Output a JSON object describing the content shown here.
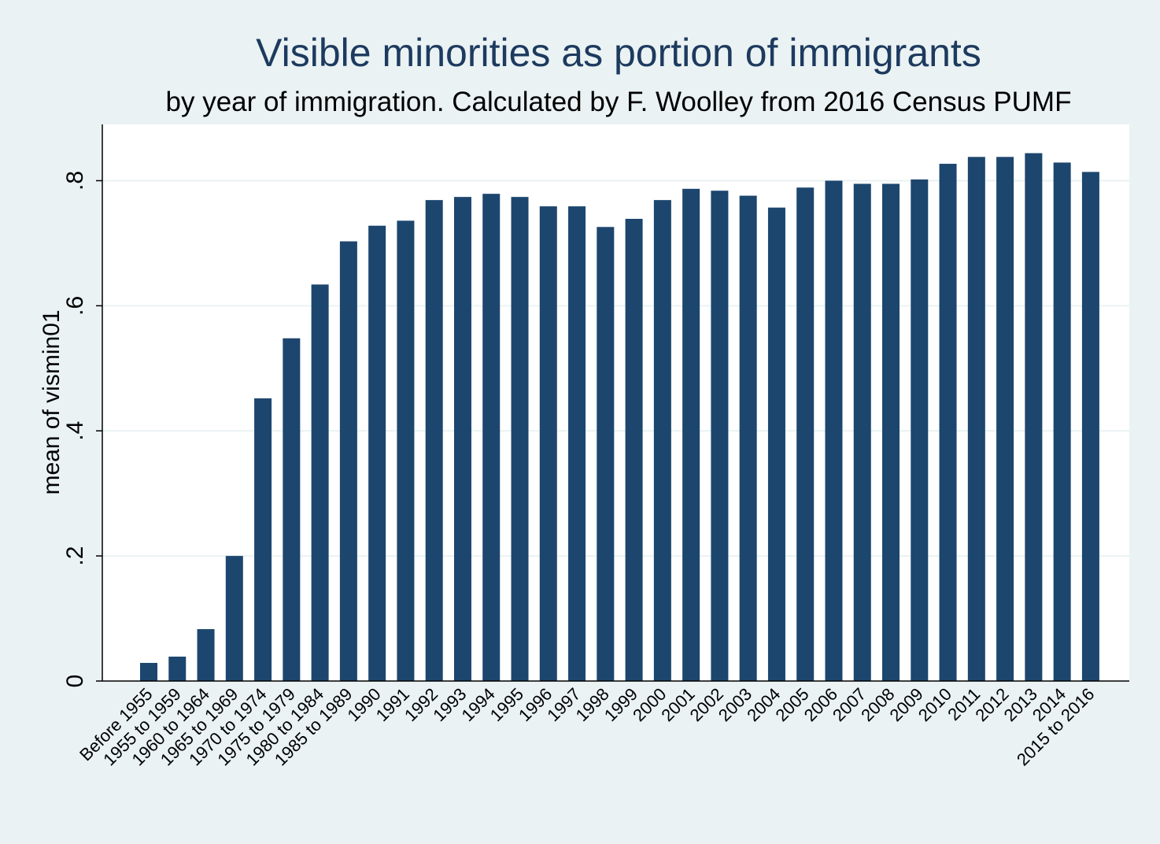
{
  "chart_data": {
    "type": "bar",
    "title": "Visible minorities as portion of immigrants",
    "subtitle": "by year of immigration. Calculated by F. Woolley from 2016 Census PUMF",
    "xlabel": "",
    "ylabel": "mean of vismin01",
    "ylim": [
      0,
      0.89
    ],
    "yticks": [
      {
        "value": 0,
        "label": "0"
      },
      {
        "value": 0.2,
        "label": ".2"
      },
      {
        "value": 0.4,
        "label": ".4"
      },
      {
        "value": 0.6,
        "label": ".6"
      },
      {
        "value": 0.8,
        "label": ".8"
      }
    ],
    "grid": true,
    "legend": "none",
    "categories": [
      "Before 1955",
      "1955 to 1959",
      "1960 to 1964",
      "1965 to 1969",
      "1970 to 1974",
      "1975 to 1979",
      "1980 to 1984",
      "1985 to 1989",
      "1990",
      "1991",
      "1992",
      "1993",
      "1994",
      "1995",
      "1996",
      "1997",
      "1998",
      "1999",
      "2000",
      "2001",
      "2002",
      "2003",
      "2004",
      "2005",
      "2006",
      "2007",
      "2008",
      "2009",
      "2010",
      "2011",
      "2012",
      "2013",
      "2014",
      "2015 to 2016"
    ],
    "values": [
      0.029,
      0.039,
      0.083,
      0.2,
      0.452,
      0.548,
      0.634,
      0.703,
      0.728,
      0.736,
      0.769,
      0.774,
      0.779,
      0.774,
      0.759,
      0.759,
      0.726,
      0.739,
      0.769,
      0.787,
      0.784,
      0.776,
      0.757,
      0.789,
      0.8,
      0.795,
      0.795,
      0.802,
      0.827,
      0.838,
      0.838,
      0.844,
      0.829,
      0.814
    ],
    "colors": {
      "bar": "#1c466e",
      "plot_background": "#ffffff",
      "page_background": "#eaf2f3",
      "grid": "#eaf2f3",
      "title": "#1d3a5f"
    }
  }
}
